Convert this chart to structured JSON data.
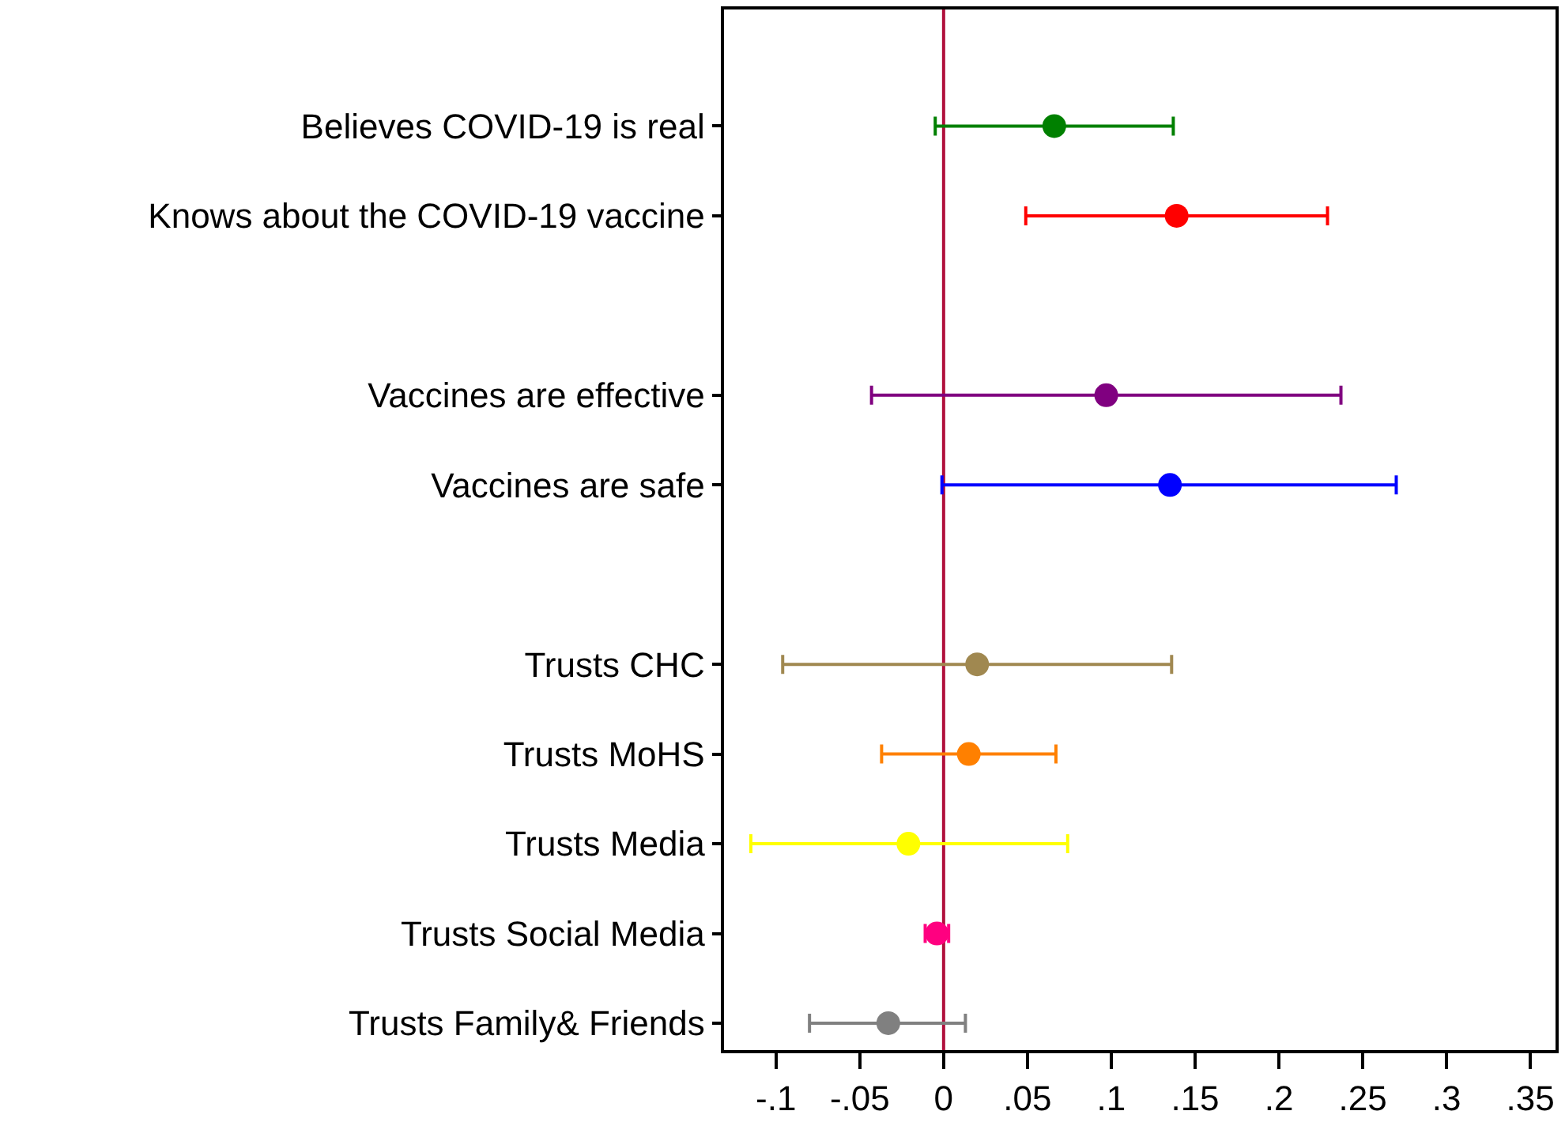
{
  "chart_data": {
    "type": "scatter",
    "orientation": "horizontal",
    "categories": [
      "Believes COVID-19 is real",
      "Knows about the COVID-19 vaccine",
      null,
      "Vaccines are effective",
      "Vaccines are safe",
      null,
      "Trusts CHC",
      "Trusts MoHS",
      "Trusts Media",
      "Trusts Social Media",
      "Trusts Family& Friends"
    ],
    "values": [
      0.066,
      0.139,
      null,
      0.097,
      0.135,
      null,
      0.02,
      0.015,
      -0.021,
      -0.004,
      -0.033
    ],
    "errors": [
      [
        -0.005,
        0.137
      ],
      [
        0.049,
        0.229
      ],
      null,
      [
        -0.043,
        0.237
      ],
      [
        -0.001,
        0.27
      ],
      null,
      [
        -0.096,
        0.136
      ],
      [
        -0.037,
        0.067
      ],
      [
        -0.115,
        0.074
      ],
      [
        -0.011,
        0.003
      ],
      [
        -0.08,
        0.013
      ]
    ],
    "colors": [
      "#008000",
      "#ff0000",
      null,
      "#800080",
      "#0000ff",
      null,
      "#a08850",
      "#ff8000",
      "#ffff00",
      "#ff0080",
      "#808080"
    ],
    "xlim": [
      -0.131,
      0.365
    ],
    "xticks": [
      {
        "value": -0.1,
        "label": "-.1"
      },
      {
        "value": -0.05,
        "label": "-.05"
      },
      0,
      {
        "value": 0.05,
        "label": ".05"
      },
      {
        "value": 0.1,
        "label": ".1"
      },
      {
        "value": 0.15,
        "label": ".15"
      },
      {
        "value": 0.2,
        "label": ".2"
      },
      {
        "value": 0.25,
        "label": ".25"
      },
      {
        "value": 0.3,
        "label": ".3"
      },
      {
        "value": 0.35,
        "label": ".35"
      }
    ],
    "ref_lines": [
      {
        "axis": "x",
        "value": 0,
        "color": "#b0103c"
      }
    ],
    "marker": "circle",
    "grid": false,
    "legend": false
  }
}
